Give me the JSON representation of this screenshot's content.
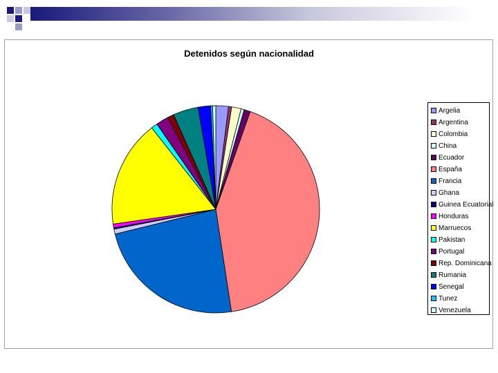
{
  "chart_data": {
    "type": "pie",
    "title": "Detenidos según nacionalidad",
    "categories": [
      "Argelia",
      "Argentina",
      "Colombia",
      "China",
      "Ecuador",
      "España",
      "Francia",
      "Ghana",
      "Guinea Ecuatorial",
      "Honduras",
      "Marruecos",
      "Pakistan",
      "Portugal",
      "Rep. Dominicana",
      "Rumania",
      "Senegal",
      "Tunez",
      "Venezuela"
    ],
    "values": [
      2.0,
      0.5,
      1.5,
      0.5,
      1.0,
      43.0,
      24.0,
      0.8,
      0.2,
      0.6,
      17.0,
      1.0,
      2.0,
      1.0,
      4.0,
      2.0,
      0.3,
      0.5
    ],
    "colors": [
      "#9999ff",
      "#993366",
      "#ffffcc",
      "#ccffff",
      "#660066",
      "#ff8080",
      "#0066cc",
      "#ccccff",
      "#000080",
      "#ff00ff",
      "#ffff00",
      "#00ffff",
      "#800080",
      "#800000",
      "#008080",
      "#0000ff",
      "#00ccff",
      "#ccffff"
    ],
    "legend_position": "right"
  }
}
